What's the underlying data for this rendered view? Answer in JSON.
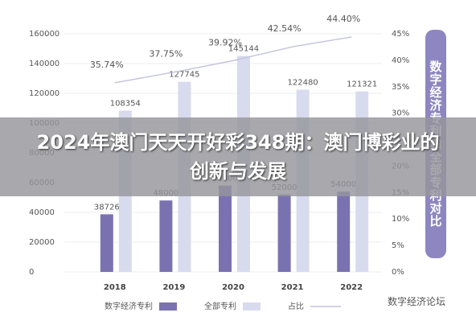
{
  "title": "2024年澳门天天开好彩348期：澳门博彩业的创新与发展",
  "chart_data": {
    "type": "bar",
    "annotations": [
      "数字经济专利和全部专利对比",
      "数字经济论坛"
    ],
    "categories": [
      "2018",
      "2019",
      "2020",
      "2021",
      "2022"
    ],
    "series": [
      {
        "name": "数字经济专利",
        "color": "#7a72b0",
        "values": [
          38726,
          48000,
          58000,
          52000,
          54000
        ]
      },
      {
        "name": "全部专利",
        "color": "#d8dbee",
        "values": [
          108354,
          127745,
          145144,
          122480,
          121321
        ]
      },
      {
        "name": "占比",
        "color": "#c4c4de",
        "axis": "y2",
        "type": "line",
        "values": [
          35.74,
          37.75,
          39.92,
          42.54,
          44.4
        ],
        "value_labels": [
          "35.74%",
          "37.75%",
          "39.92%",
          "42.54%",
          "44.40%"
        ]
      }
    ],
    "ylim": [
      0,
      160000
    ],
    "yticks": [
      0,
      20000,
      40000,
      60000,
      80000,
      100000,
      120000,
      140000,
      160000
    ],
    "y2lim": [
      0,
      45
    ],
    "y2ticks": [
      {
        "value": 0,
        "label": "0%"
      },
      {
        "value": 5,
        "label": "5%"
      },
      {
        "value": 10,
        "label": "10%"
      },
      {
        "value": 15,
        "label": "15%"
      },
      {
        "value": 20,
        "label": "20%"
      },
      {
        "value": 25,
        "label": "25%"
      },
      {
        "value": 30,
        "label": "30%"
      },
      {
        "value": 35,
        "label": "35%"
      },
      {
        "value": 40,
        "label": "40%"
      },
      {
        "value": 45,
        "label": "45%"
      }
    ],
    "grid": true
  }
}
